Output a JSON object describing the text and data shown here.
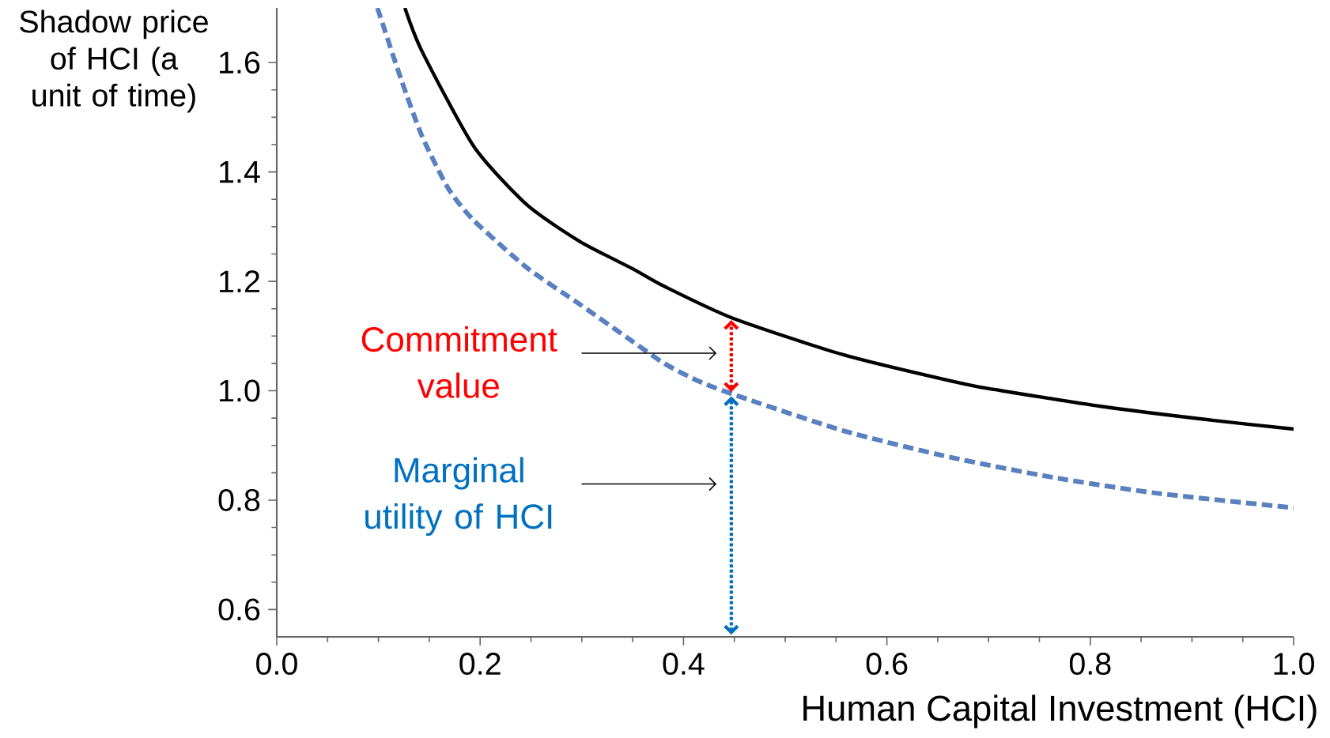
{
  "chart_data": {
    "type": "line",
    "xlabel": "Human Capital Investment (HCI)",
    "ylabel": "Shadow price of HCI (a unit of time)",
    "xlim": [
      0,
      1
    ],
    "ylim": [
      0.55,
      1.7
    ],
    "xticks": [
      {
        "value": 0,
        "label": "0.0"
      },
      0.2,
      0.4,
      0.6,
      0.8,
      {
        "value": 1,
        "label": "1.0"
      }
    ],
    "yticks": [
      0.6,
      0.8,
      {
        "value": 1,
        "label": "1.0"
      },
      1.2,
      1.4,
      1.6
    ],
    "grid": false,
    "marker": "none",
    "series": [
      {
        "color": "#000000",
        "line_style": "solid",
        "x": [
          0.126,
          0.143,
          0.194,
          0.246,
          0.298,
          0.35,
          0.381,
          0.448,
          0.557,
          0.677,
          0.713,
          0.816,
          0.92,
          1.0
        ],
        "values": [
          1.7,
          1.62,
          1.446,
          1.34,
          1.273,
          1.223,
          1.191,
          1.133,
          1.066,
          1.012,
          1.0,
          0.97,
          0.946,
          0.93
        ]
      },
      {
        "color": "#5b80c0",
        "line_style": "dashed",
        "x": [
          0.099,
          0.122,
          0.143,
          0.169,
          0.194,
          0.246,
          0.298,
          0.35,
          0.381,
          0.412,
          0.448,
          0.557,
          0.661,
          0.765,
          0.868,
          1.0
        ],
        "values": [
          1.7,
          1.571,
          1.465,
          1.369,
          1.311,
          1.225,
          1.158,
          1.09,
          1.05,
          1.02,
          0.994,
          0.927,
          0.879,
          0.841,
          0.812,
          0.786
        ]
      }
    ],
    "annotations": [
      "Commitment value",
      "Marginal utility of HCI"
    ]
  }
}
